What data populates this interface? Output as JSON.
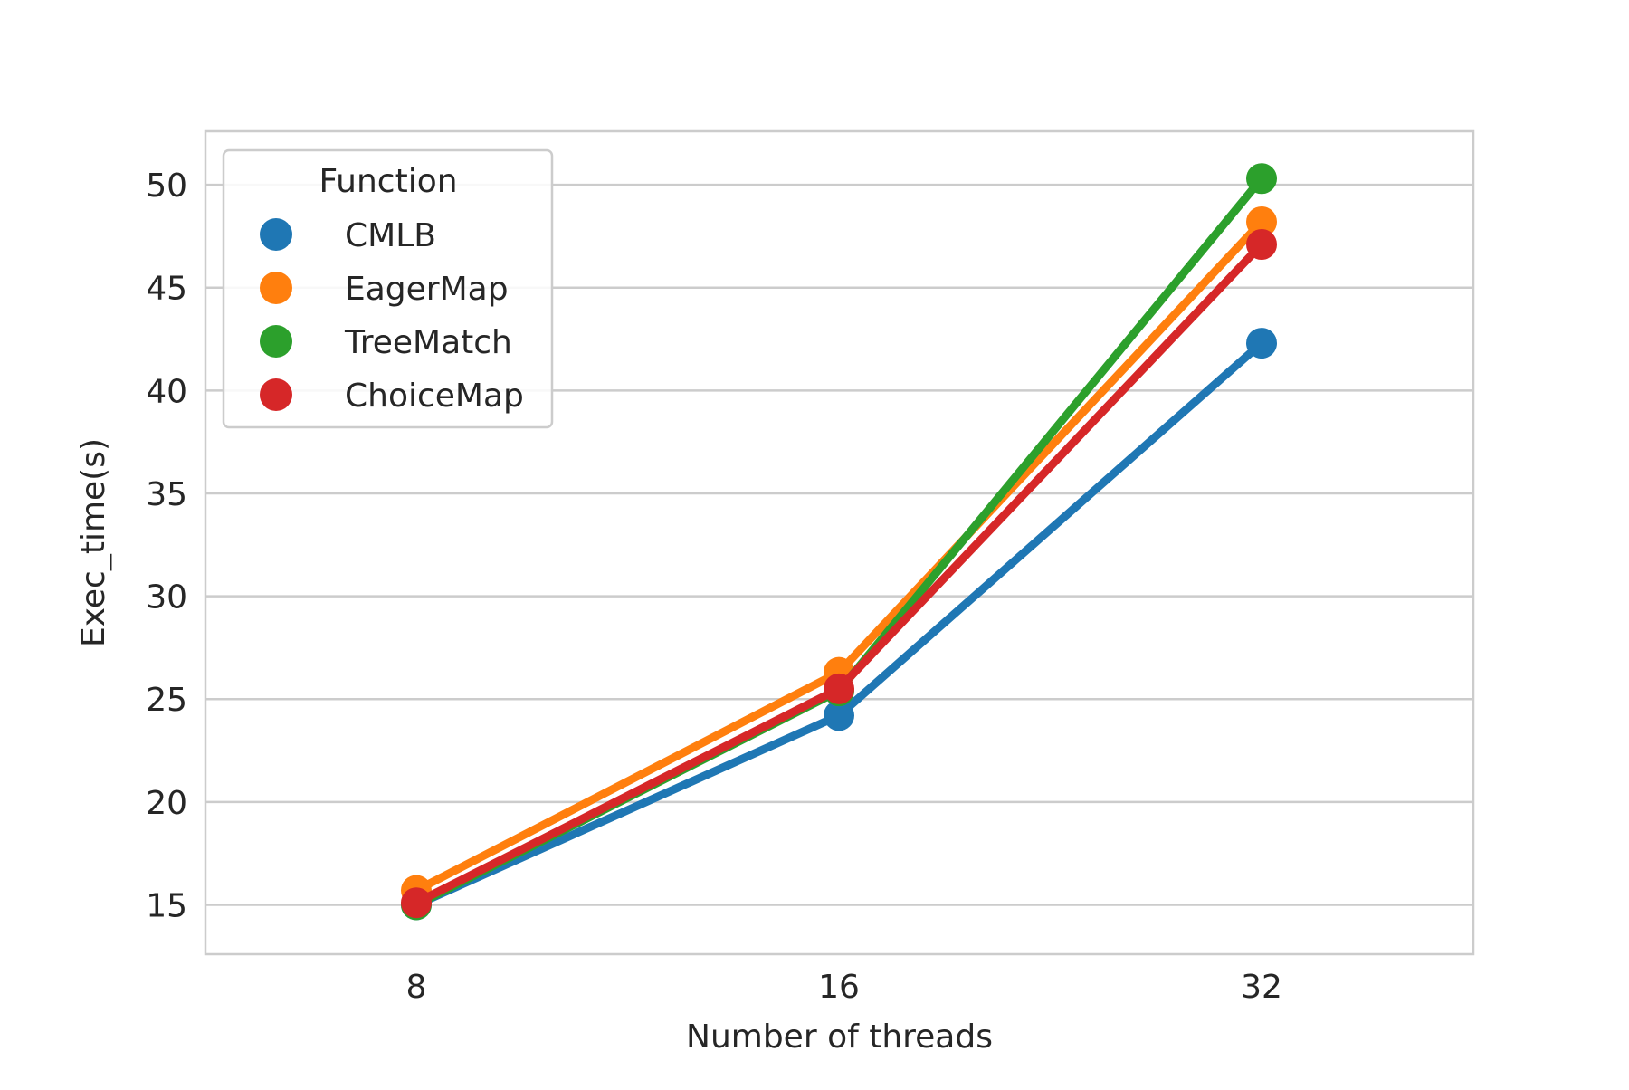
{
  "chart_data": {
    "type": "line",
    "title": "",
    "xlabel": "Number of threads",
    "ylabel": "Exec_time(s)",
    "categories": [
      "8",
      "16",
      "32"
    ],
    "ylim": [
      12.6,
      52.6
    ],
    "yticks": [
      15,
      20,
      25,
      30,
      35,
      40,
      45,
      50
    ],
    "grid": true,
    "legend": {
      "title": "Function",
      "placement": "top-left"
    },
    "series": [
      {
        "name": "CMLB",
        "color": "#1f77b4",
        "values": [
          15.0,
          24.2,
          42.3
        ]
      },
      {
        "name": "EagerMap",
        "color": "#ff7f0e",
        "values": [
          15.7,
          26.3,
          48.2
        ]
      },
      {
        "name": "TreeMatch",
        "color": "#2ca02c",
        "values": [
          15.0,
          25.4,
          50.3
        ]
      },
      {
        "name": "ChoiceMap",
        "color": "#d62728",
        "values": [
          15.1,
          25.5,
          47.1
        ]
      }
    ]
  }
}
